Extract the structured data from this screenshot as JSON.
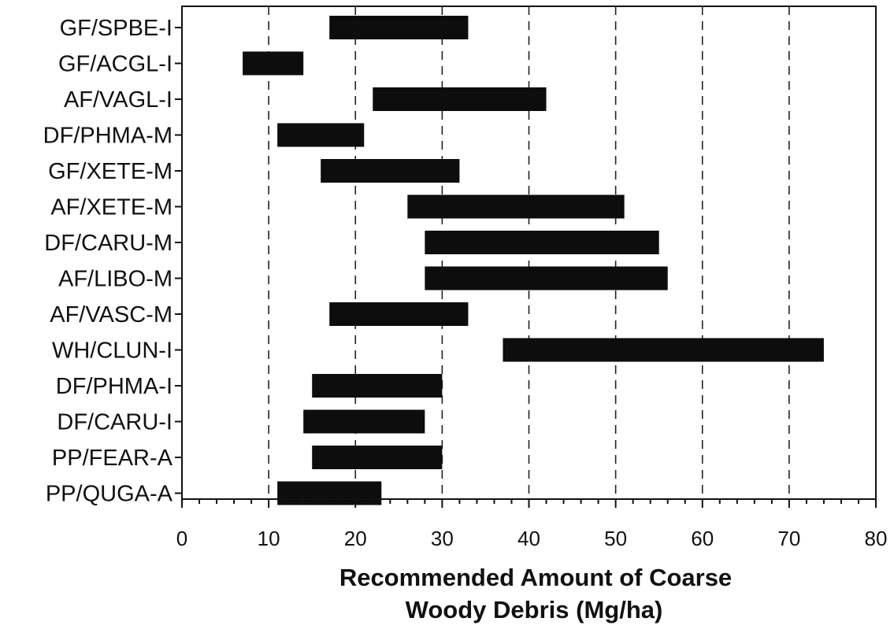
{
  "chart_data": {
    "type": "bar",
    "orientation": "horizontal",
    "subtype": "floating-range",
    "title": "",
    "xlabel_lines": [
      "Recommended Amount of Coarse",
      "Woody Debris (Mg/ha)"
    ],
    "ylabel": "",
    "xlim": [
      0,
      80
    ],
    "x_major_ticks": [
      0,
      10,
      20,
      30,
      40,
      50,
      60,
      70,
      80
    ],
    "x_tick_labels": [
      "0",
      "10",
      "20",
      "30",
      "40",
      "50",
      "60",
      "70",
      "80"
    ],
    "x_minor_step": 2,
    "grid": "vertical dashed at major ticks 10-70",
    "bar_color": "#0d0d0d",
    "categories": [
      "GF/SPBE-I",
      "GF/ACGL-I",
      "AF/VAGL-I",
      "DF/PHMA-M",
      "GF/XETE-M",
      "AF/XETE-M",
      "DF/CARU-M",
      "AF/LIBO-M",
      "AF/VASC-M",
      "WH/CLUN-I",
      "DF/PHMA-I",
      "DF/CARU-I",
      "PP/FEAR-A",
      "PP/QUGA-A"
    ],
    "ranges": [
      [
        17,
        33
      ],
      [
        7,
        14
      ],
      [
        22,
        42
      ],
      [
        11,
        21
      ],
      [
        16,
        32
      ],
      [
        26,
        51
      ],
      [
        28,
        55
      ],
      [
        28,
        56
      ],
      [
        17,
        33
      ],
      [
        37,
        74
      ],
      [
        15,
        30
      ],
      [
        14,
        28
      ],
      [
        15,
        30
      ],
      [
        11,
        23
      ]
    ]
  }
}
